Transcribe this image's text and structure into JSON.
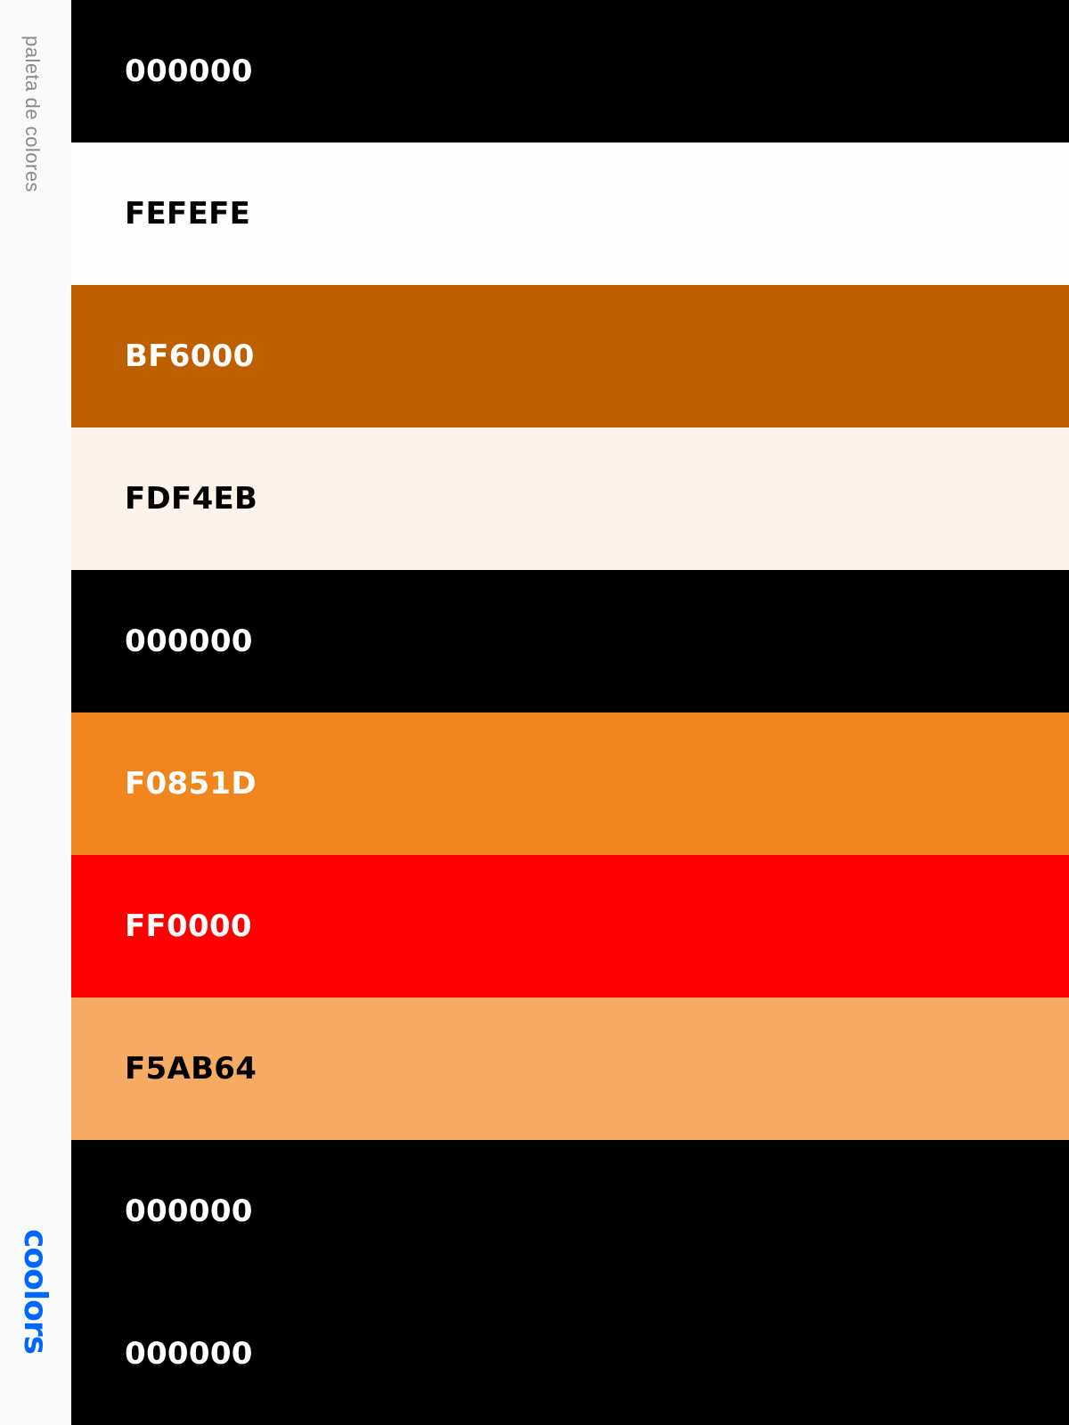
{
  "sidebar": {
    "title": "paleta de colores",
    "logo": "coolors"
  },
  "colors": {
    "logo": "#0066ff",
    "sidebar_bg": "#fafafa",
    "title": "#8a8a8a"
  },
  "swatches": [
    {
      "hex": "000000",
      "color": "#000000",
      "text_color": "#ffffff"
    },
    {
      "hex": "FEFEFE",
      "color": "#fdfdfd",
      "text_color": "#000000"
    },
    {
      "hex": "BF6000",
      "color": "#bf6000",
      "text_color": "#ffffff"
    },
    {
      "hex": "FDF4EB",
      "color": "#fcf3ea",
      "text_color": "#000000"
    },
    {
      "hex": "000000",
      "color": "#000000",
      "text_color": "#ffffff"
    },
    {
      "hex": "F0851D",
      "color": "#f0861d",
      "text_color": "#ffffff"
    },
    {
      "hex": "FF0000",
      "color": "#ff0000",
      "text_color": "#ffffff"
    },
    {
      "hex": "F5AB64",
      "color": "#f5ab64",
      "text_color": "#000000"
    },
    {
      "hex": "000000",
      "color": "#000000",
      "text_color": "#ffffff"
    },
    {
      "hex": "000000",
      "color": "#000000",
      "text_color": "#ffffff"
    }
  ]
}
